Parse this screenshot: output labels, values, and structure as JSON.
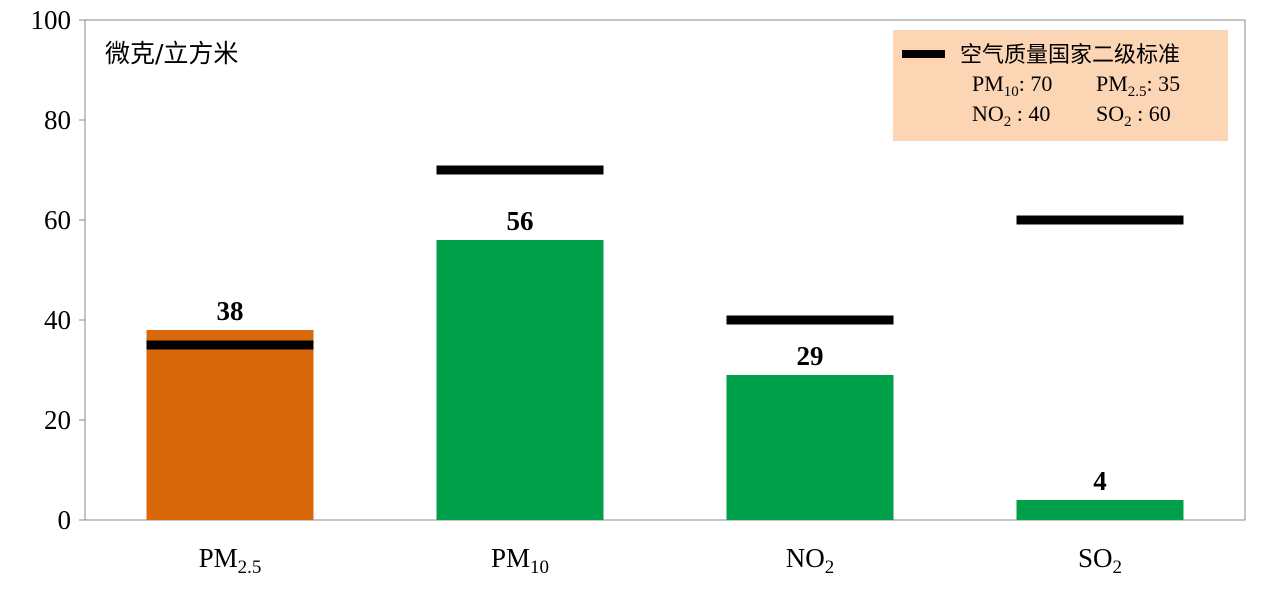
{
  "chart_data": {
    "type": "bar",
    "title": "",
    "unit_label": "微克/立方米",
    "ylim": [
      0,
      100
    ],
    "yticks": [
      0,
      20,
      40,
      60,
      80,
      100
    ],
    "grid": false,
    "categories": [
      {
        "main": "PM",
        "sub": "2.5"
      },
      {
        "main": "PM",
        "sub": "10"
      },
      {
        "main": "NO",
        "sub": "2"
      },
      {
        "main": "SO",
        "sub": "2"
      }
    ],
    "values": [
      38,
      56,
      29,
      4
    ],
    "bar_colors": [
      "#D9680B",
      "#00A04A",
      "#00A04A",
      "#00A04A"
    ],
    "standard": {
      "name": "空气质量国家二级标准",
      "values": [
        35,
        70,
        40,
        60
      ],
      "color": "#000000"
    },
    "legend": {
      "placement": "top-right",
      "background": "#FCD5B5",
      "rows": [
        [
          {
            "main": "PM",
            "sub": "10",
            "rest": ": 70"
          },
          {
            "main": "PM",
            "sub": "2.5",
            "rest": ": 35"
          }
        ],
        [
          {
            "main": "NO",
            "sub": "2",
            "rest": " : 40"
          },
          {
            "main": "SO",
            "sub": "2",
            "rest": " : 60"
          }
        ]
      ]
    }
  }
}
